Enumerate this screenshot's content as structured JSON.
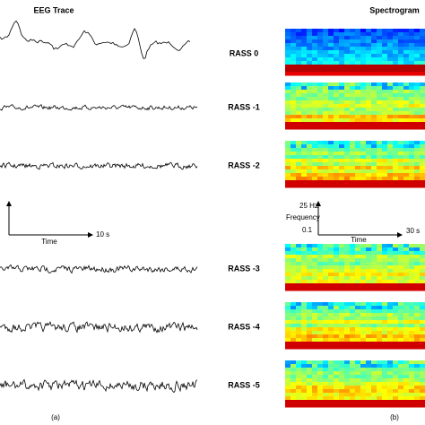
{
  "panel_a": {
    "title": "EEG Trace",
    "axis": {
      "x_label": "Time",
      "x_end": "10 s"
    },
    "caption": "(a)"
  },
  "rows": [
    {
      "label": "RASS 0"
    },
    {
      "label": "RASS -1"
    },
    {
      "label": "RASS -2"
    },
    {
      "label": "RASS -3"
    },
    {
      "label": "RASS -4"
    },
    {
      "label": "RASS -5"
    }
  ],
  "panel_b": {
    "title": "Spectrogram",
    "axis": {
      "y_top": "25 Hz",
      "y_label": "Frequency",
      "y_bottom": "0.1",
      "x_label": "Time",
      "x_end": "30 s"
    },
    "caption": "(b)"
  }
}
